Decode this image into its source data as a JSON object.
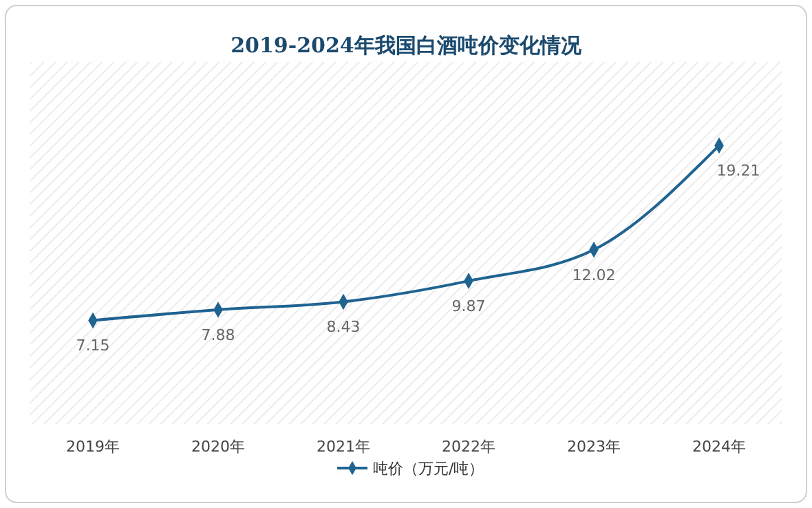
{
  "chart_data": {
    "type": "line",
    "title": "2019-2024年我国白酒吨价变化情况",
    "categories": [
      "2019年",
      "2020年",
      "2021年",
      "2022年",
      "2023年",
      "2024年"
    ],
    "series": [
      {
        "name": "吨价（万元/吨）",
        "color": "#1f6391",
        "values": [
          7.15,
          7.88,
          8.43,
          9.87,
          12.02,
          19.21
        ]
      }
    ],
    "data_labels": true,
    "marker": "diamond",
    "legend": "bottom"
  }
}
